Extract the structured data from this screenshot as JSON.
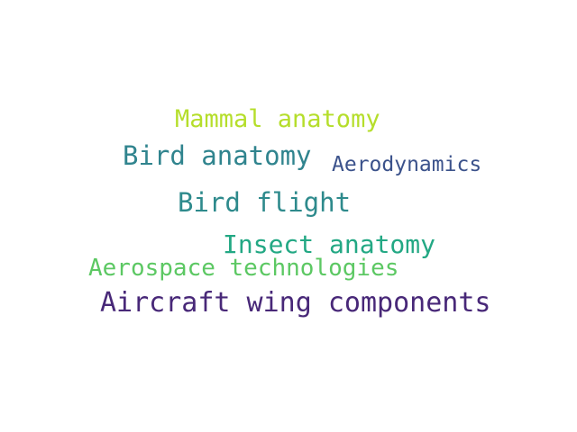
{
  "words": [
    {
      "text": "Mammal anatomy",
      "color": "#b5de2b"
    },
    {
      "text": "Bird anatomy",
      "color": "#30848e"
    },
    {
      "text": "Aerodynamics",
      "color": "#3b528b"
    },
    {
      "text": "Bird flight",
      "color": "#2e8a8c"
    },
    {
      "text": "Insect anatomy",
      "color": "#23a884"
    },
    {
      "text": "Aerospace technologies",
      "color": "#5cc863"
    },
    {
      "text": "Aircraft wing components",
      "color": "#482878"
    }
  ]
}
